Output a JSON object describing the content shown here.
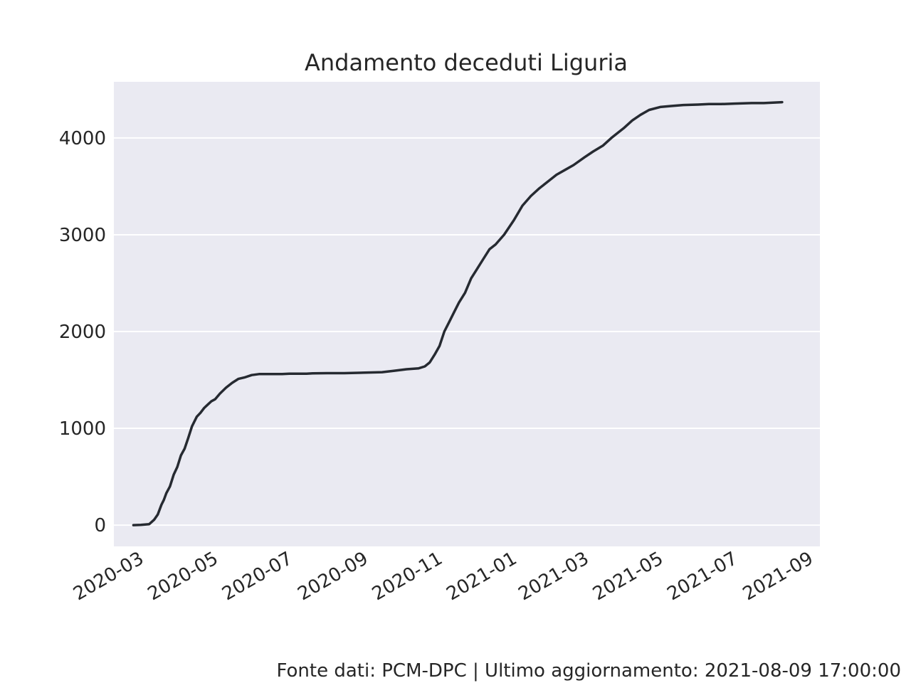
{
  "chart_data": {
    "type": "line",
    "title": "Andamento deceduti Liguria",
    "xlabel": "",
    "ylabel": "",
    "x_range": [
      "2020-02-08",
      "2021-09-09"
    ],
    "ylim": [
      -220,
      4580
    ],
    "grid": "y",
    "colors": {
      "background": "#EAEAF2",
      "grid": "#FFFFFF",
      "line": "#262A31",
      "text": "#262626"
    },
    "x_ticks": [
      "2020-03",
      "2020-05",
      "2020-07",
      "2020-09",
      "2020-11",
      "2021-01",
      "2021-03",
      "2021-05",
      "2021-07",
      "2021-09"
    ],
    "y_ticks": [
      0,
      1000,
      2000,
      3000,
      4000
    ],
    "series": [
      {
        "x": [
          "2020-02-24",
          "2020-03-01",
          "2020-03-08",
          "2020-03-12",
          "2020-03-15",
          "2020-03-18",
          "2020-03-20",
          "2020-03-22",
          "2020-03-25",
          "2020-03-28",
          "2020-03-31",
          "2020-04-03",
          "2020-04-06",
          "2020-04-09",
          "2020-04-12",
          "2020-04-16",
          "2020-04-19",
          "2020-04-22",
          "2020-04-25",
          "2020-04-28",
          "2020-05-01",
          "2020-05-05",
          "2020-05-10",
          "2020-05-15",
          "2020-05-20",
          "2020-05-25",
          "2020-05-31",
          "2020-06-06",
          "2020-06-15",
          "2020-06-25",
          "2020-07-01",
          "2020-07-15",
          "2020-07-20",
          "2020-08-01",
          "2020-08-15",
          "2020-09-01",
          "2020-09-15",
          "2020-09-25",
          "2020-10-05",
          "2020-10-15",
          "2020-10-20",
          "2020-10-24",
          "2020-10-28",
          "2020-11-01",
          "2020-11-05",
          "2020-11-09",
          "2020-11-13",
          "2020-11-17",
          "2020-11-22",
          "2020-11-27",
          "2020-12-02",
          "2020-12-07",
          "2020-12-12",
          "2020-12-17",
          "2020-12-24",
          "2021-01-01",
          "2021-01-08",
          "2021-01-15",
          "2021-01-22",
          "2021-01-29",
          "2021-02-05",
          "2021-02-12",
          "2021-02-19",
          "2021-02-28",
          "2021-03-07",
          "2021-03-15",
          "2021-03-22",
          "2021-04-01",
          "2021-04-08",
          "2021-04-15",
          "2021-04-22",
          "2021-05-01",
          "2021-05-10",
          "2021-05-20",
          "2021-06-01",
          "2021-06-10",
          "2021-06-20",
          "2021-07-01",
          "2021-07-15",
          "2021-07-25",
          "2021-08-09"
        ],
        "y": [
          0,
          2,
          10,
          55,
          110,
          210,
          260,
          330,
          400,
          520,
          600,
          720,
          790,
          900,
          1020,
          1120,
          1160,
          1210,
          1245,
          1280,
          1300,
          1360,
          1420,
          1470,
          1510,
          1525,
          1550,
          1560,
          1560,
          1560,
          1565,
          1565,
          1568,
          1570,
          1570,
          1575,
          1580,
          1595,
          1610,
          1620,
          1640,
          1680,
          1760,
          1850,
          2000,
          2100,
          2200,
          2300,
          2400,
          2550,
          2650,
          2750,
          2850,
          2900,
          3000,
          3150,
          3300,
          3400,
          3480,
          3550,
          3620,
          3670,
          3720,
          3800,
          3860,
          3920,
          4000,
          4100,
          4180,
          4240,
          4290,
          4320,
          4330,
          4340,
          4345,
          4350,
          4350,
          4355,
          4360,
          4360,
          4370
        ]
      }
    ]
  },
  "footer": "Fonte dati: PCM-DPC | Ultimo aggiornamento: 2021-08-09 17:00:00"
}
